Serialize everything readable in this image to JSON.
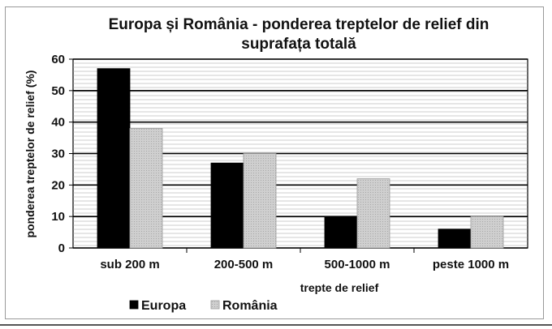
{
  "chart_data": {
    "type": "bar",
    "title_lines": [
      "Europa și România - ponderea treptelor de relief din",
      "suprafața totală"
    ],
    "xlabel": "trepte de relief",
    "ylabel": "ponderea treptelor de relief (%)",
    "categories": [
      "sub 200 m",
      "200-500 m",
      "500-1000 m",
      "peste 1000 m"
    ],
    "ylim": [
      0,
      60
    ],
    "yticks": [
      0,
      10,
      20,
      30,
      40,
      50,
      60
    ],
    "grid": true,
    "legend_position": "bottom",
    "series": [
      {
        "name": "Europa",
        "values": [
          57,
          27,
          10,
          6
        ],
        "color": "#000000"
      },
      {
        "name": "România",
        "values": [
          38,
          30,
          22,
          10
        ],
        "color": "#c8c8c8"
      }
    ]
  }
}
